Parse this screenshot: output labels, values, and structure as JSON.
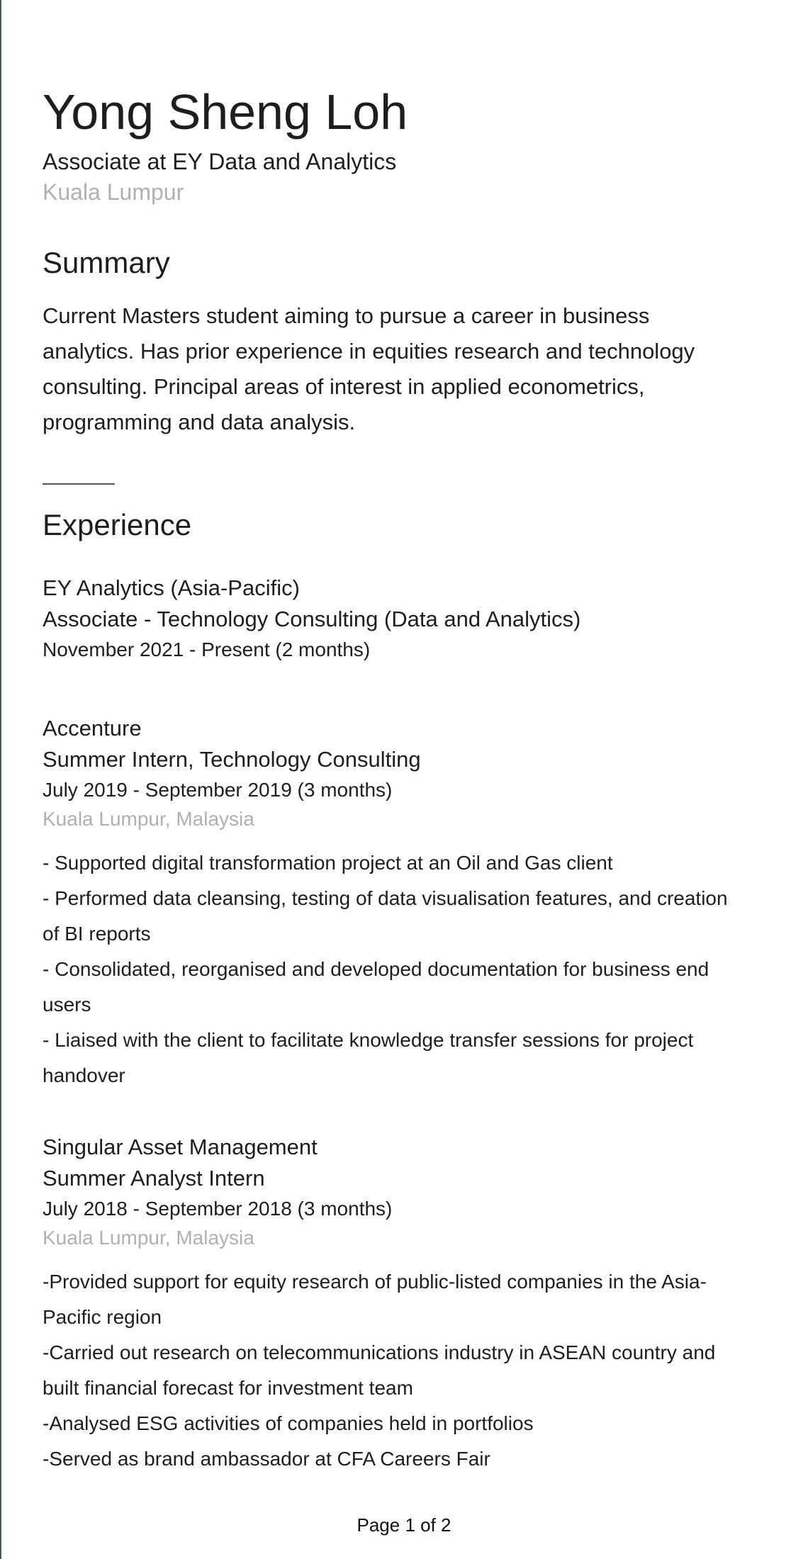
{
  "profile": {
    "name": "Yong Sheng Loh",
    "headline": "Associate at EY Data and Analytics",
    "location": "Kuala Lumpur"
  },
  "summary": {
    "title": "Summary",
    "lines": [
      "Current Masters student aiming to pursue a career in business",
      "analytics. Has prior experience in equities research and technology",
      "consulting. Principal areas of interest in applied econometrics,",
      "programming and data analysis."
    ]
  },
  "experience": {
    "title": "Experience",
    "jobs": [
      {
        "company": "EY Analytics (Asia-Pacific)",
        "title": "Associate - Technology Consulting (Data and Analytics)",
        "dates": "November 2021 - Present (2 months)"
      },
      {
        "company": "Accenture",
        "title": "Summer Intern, Technology Consulting",
        "dates": "July 2019 - September 2019 (3 months)",
        "location": "Kuala Lumpur, Malaysia",
        "lines": [
          "- Supported digital transformation project at an Oil and Gas client",
          "- Performed data cleansing, testing of data visualisation features, and creation",
          "of BI reports",
          "- Consolidated, reorganised and developed documentation for business end",
          "users",
          "- Liaised with the client to facilitate knowledge transfer sessions for project",
          "handover"
        ]
      },
      {
        "company": "Singular Asset Management",
        "title": "Summer Analyst Intern",
        "dates": "July 2018 - September 2018 (3 months)",
        "location": "Kuala Lumpur, Malaysia",
        "lines": [
          "-Provided support for equity research of public-listed companies in the Asia-",
          "Pacific region",
          "-Carried out research on telecommunications industry in ASEAN country and",
          "built financial forecast for investment team",
          "-Analysed ESG activities of companies held in portfolios",
          "-Served as brand ambassador at CFA Careers Fair"
        ]
      }
    ]
  },
  "footer": {
    "page_label": "Page 1 of 2"
  }
}
